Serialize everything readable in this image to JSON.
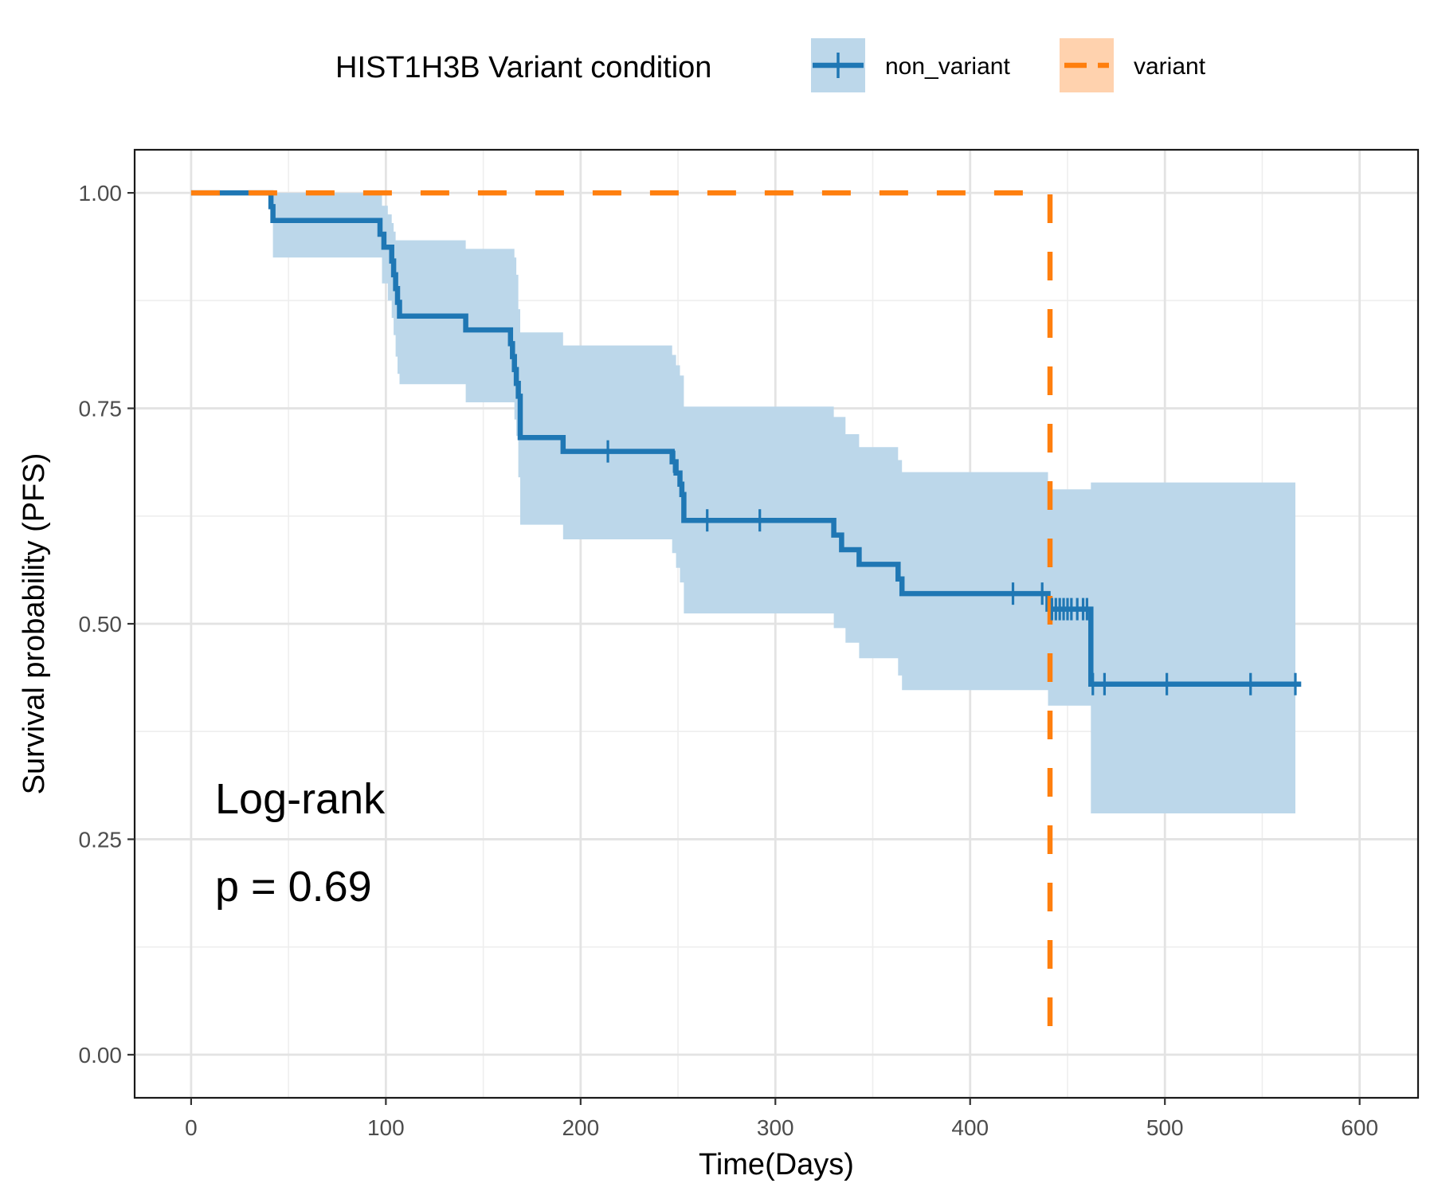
{
  "chart_data": {
    "type": "line",
    "subtype": "kaplan-meier",
    "xlabel": "Time(Days)",
    "ylabel": "Survival probability (PFS)",
    "xlim": [
      -29,
      630
    ],
    "ylim": [
      -0.05,
      1.05
    ],
    "xticks": [
      0,
      100,
      200,
      300,
      400,
      500,
      600
    ],
    "xtick_labels": [
      "0",
      "100",
      "200",
      "300",
      "400",
      "500",
      "600"
    ],
    "yticks": [
      0,
      0.25,
      0.5,
      0.75,
      1.0
    ],
    "ytick_labels": [
      "0.00",
      "0.25",
      "0.50",
      "0.75",
      "1.00"
    ],
    "grid": true,
    "legend": {
      "title": "HIST1H3B Variant condition",
      "position": "top",
      "entries": [
        "non_variant",
        "variant"
      ]
    },
    "annotations": [
      "Log-rank",
      "p = 0.69"
    ],
    "colors": {
      "non_variant": "#1f77b4",
      "variant": "#ff7f0e",
      "ci_fill": "#bcd7ea",
      "ci_fill_variant": "#ffd2ae"
    },
    "series": [
      {
        "name": "non_variant",
        "style": "solid",
        "steps": [
          [
            0,
            1.0
          ],
          [
            41,
            0.984
          ],
          [
            42,
            0.968
          ],
          [
            97,
            0.952
          ],
          [
            99,
            0.937
          ],
          [
            103,
            0.921
          ],
          [
            104,
            0.905
          ],
          [
            105,
            0.889
          ],
          [
            106,
            0.873
          ],
          [
            107,
            0.857
          ],
          [
            141,
            0.841
          ],
          [
            164,
            0.825
          ],
          [
            165,
            0.81
          ],
          [
            166,
            0.795
          ],
          [
            167,
            0.779
          ],
          [
            168,
            0.764
          ],
          [
            169,
            0.716
          ],
          [
            191,
            0.7
          ],
          [
            247,
            0.688
          ],
          [
            249,
            0.675
          ],
          [
            251,
            0.662
          ],
          [
            252,
            0.65
          ],
          [
            253,
            0.62
          ],
          [
            330,
            0.603
          ],
          [
            334,
            0.586
          ],
          [
            343,
            0.569
          ],
          [
            363,
            0.552
          ],
          [
            365,
            0.535
          ],
          [
            440,
            0.517
          ],
          [
            462,
            0.43
          ]
        ],
        "end_x": 570,
        "censored": [
          [
            214,
            0.7
          ],
          [
            248,
            0.688
          ],
          [
            265,
            0.62
          ],
          [
            292,
            0.62
          ],
          [
            422,
            0.535
          ],
          [
            437,
            0.535
          ],
          [
            442,
            0.517
          ],
          [
            444,
            0.517
          ],
          [
            446,
            0.517
          ],
          [
            448,
            0.517
          ],
          [
            450,
            0.517
          ],
          [
            452,
            0.517
          ],
          [
            455,
            0.517
          ],
          [
            458,
            0.517
          ],
          [
            460,
            0.517
          ],
          [
            463,
            0.43
          ],
          [
            469,
            0.43
          ],
          [
            501,
            0.43
          ],
          [
            544,
            0.43
          ],
          [
            567,
            0.43
          ]
        ],
        "ci_lower": [
          [
            0,
            1.0
          ],
          [
            42,
            0.925
          ],
          [
            98,
            0.895
          ],
          [
            101,
            0.875
          ],
          [
            103,
            0.855
          ],
          [
            104,
            0.835
          ],
          [
            105,
            0.81
          ],
          [
            106,
            0.79
          ],
          [
            107,
            0.778
          ],
          [
            141,
            0.757
          ],
          [
            166,
            0.737
          ],
          [
            167,
            0.718
          ],
          [
            168,
            0.67
          ],
          [
            169,
            0.615
          ],
          [
            191,
            0.598
          ],
          [
            247,
            0.582
          ],
          [
            249,
            0.565
          ],
          [
            251,
            0.548
          ],
          [
            253,
            0.512
          ],
          [
            330,
            0.495
          ],
          [
            336,
            0.478
          ],
          [
            343,
            0.46
          ],
          [
            363,
            0.44
          ],
          [
            365,
            0.423
          ],
          [
            440,
            0.405
          ],
          [
            462,
            0.28
          ],
          [
            567,
            0.28
          ]
        ],
        "ci_upper": [
          [
            0,
            1.0
          ],
          [
            98,
            0.985
          ],
          [
            101,
            0.975
          ],
          [
            103,
            0.965
          ],
          [
            104,
            0.955
          ],
          [
            105,
            0.945
          ],
          [
            141,
            0.935
          ],
          [
            166,
            0.925
          ],
          [
            167,
            0.905
          ],
          [
            168,
            0.865
          ],
          [
            169,
            0.838
          ],
          [
            191,
            0.823
          ],
          [
            247,
            0.812
          ],
          [
            249,
            0.8
          ],
          [
            251,
            0.788
          ],
          [
            253,
            0.752
          ],
          [
            330,
            0.74
          ],
          [
            336,
            0.72
          ],
          [
            343,
            0.705
          ],
          [
            363,
            0.69
          ],
          [
            365,
            0.676
          ],
          [
            440,
            0.656
          ],
          [
            462,
            0.664
          ],
          [
            567,
            0.664
          ]
        ]
      },
      {
        "name": "variant",
        "style": "dashed",
        "steps": [
          [
            0,
            1.0
          ],
          [
            441,
            0.0
          ]
        ],
        "end_x": 441,
        "censored": []
      }
    ]
  }
}
